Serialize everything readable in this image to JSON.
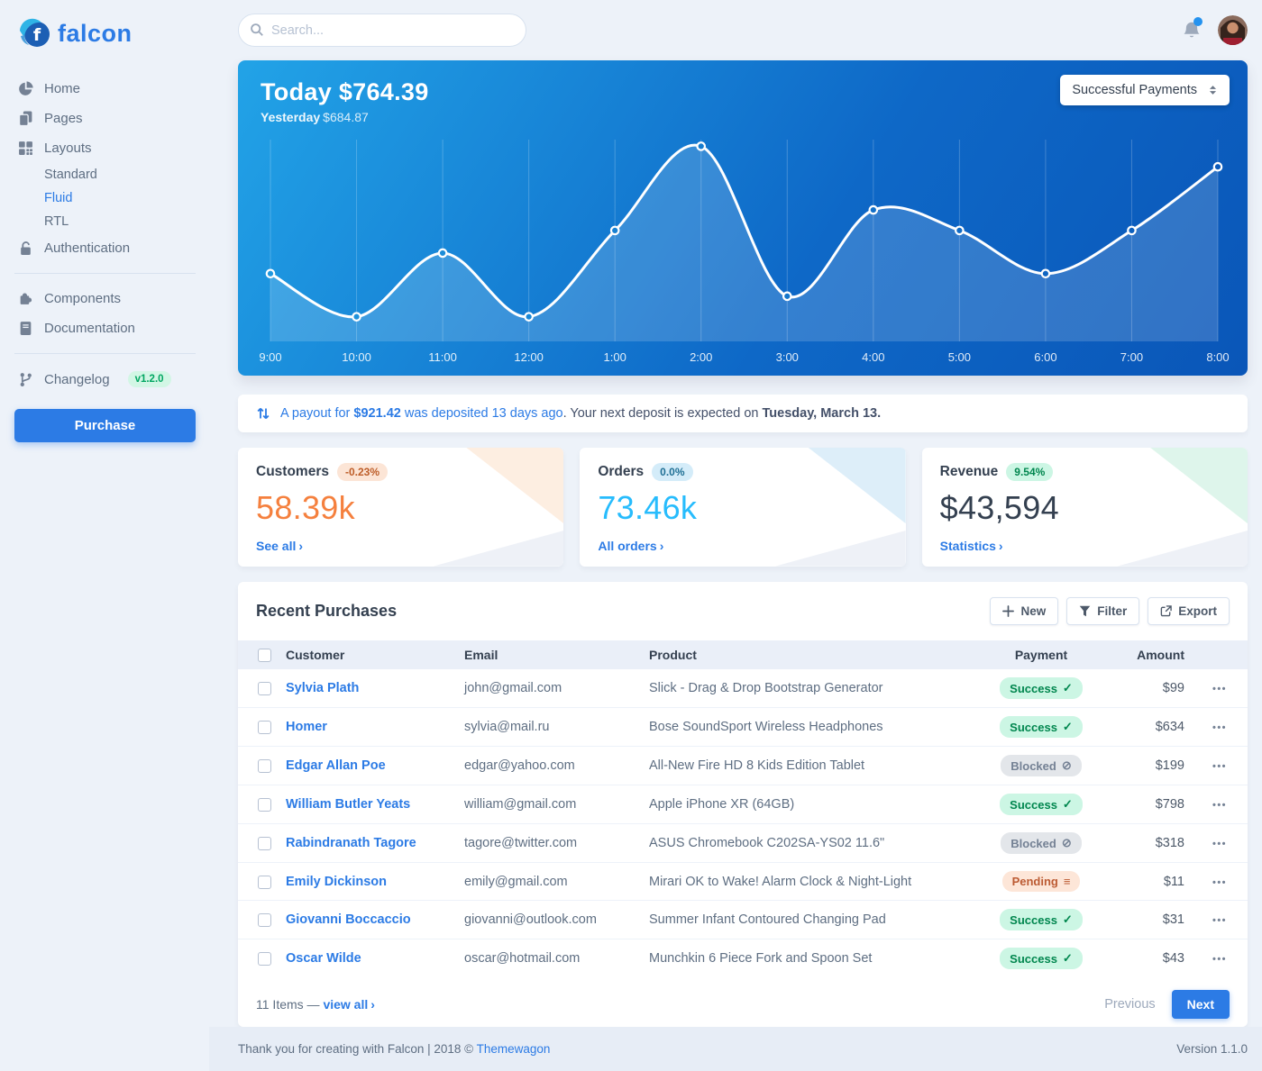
{
  "app": {
    "brand": "falcon",
    "footer_text": "Thank you for creating with Falcon | 2018 © ",
    "footer_link": "Themewagon",
    "version_label": "Version 1.1.0"
  },
  "colors": {
    "primary": "#2c7be5",
    "background": "#edf2f9",
    "chart_gradient": [
      "#22a3e7",
      "#0a56b8"
    ],
    "customers_value": "#f5803e",
    "orders_value": "#27bcfd",
    "revenue_value": "#344050",
    "success_badge": {
      "bg": "#ccf6e4",
      "text": "#00864e"
    },
    "blocked_badge": {
      "bg": "#e3e6ea",
      "text": "#748194"
    },
    "pending_badge": {
      "bg": "#fde6d8",
      "text": "#bc5b33"
    }
  },
  "topbar": {
    "search_placeholder": "Search...",
    "bell_icon": "bell-icon",
    "avatar": "user-avatar"
  },
  "sidebar": {
    "items": [
      {
        "label": "Home",
        "icon": "chart-pie-icon"
      },
      {
        "label": "Pages",
        "icon": "copy-icon"
      },
      {
        "label": "Layouts",
        "icon": "grid-icon",
        "children": [
          {
            "label": "Standard",
            "active": false
          },
          {
            "label": "Fluid",
            "active": true
          },
          {
            "label": "RTL",
            "active": false
          }
        ]
      },
      {
        "label": "Authentication",
        "icon": "lock-icon"
      },
      {
        "divider": true
      },
      {
        "label": "Components",
        "icon": "puzzle-icon"
      },
      {
        "label": "Documentation",
        "icon": "book-icon"
      },
      {
        "divider": true
      },
      {
        "label": "Changelog",
        "icon": "code-branch-icon",
        "badge": "v1.2.0"
      }
    ],
    "purchase_label": "Purchase"
  },
  "chart": {
    "today_label": "Today",
    "today_value": "$764.39",
    "yesterday_label": "Yesterday",
    "yesterday_value": "$684.87",
    "select_label": "Successful Payments"
  },
  "chart_data": {
    "type": "line",
    "title": "Today $764.39",
    "subtitle": "Yesterday $684.87",
    "series": [
      {
        "name": "Successful Payments",
        "values": [
          33,
          12,
          43,
          12,
          54,
          95,
          22,
          64,
          54,
          33,
          54,
          85
        ]
      }
    ],
    "x_labels": [
      "9:00",
      "10:00",
      "11:00",
      "12:00",
      "1:00",
      "2:00",
      "3:00",
      "4:00",
      "5:00",
      "6:00",
      "7:00",
      "8:00"
    ],
    "ylim": [
      0,
      100
    ],
    "y_axis_shown": false,
    "values_note": "relative heights estimated from pixels; no y-axis labels shown",
    "grid": "vertical",
    "line_color": "#ffffff",
    "area_fill": "rgba(255,255,255,0.16)",
    "markers": true
  },
  "payout": {
    "icon": "exchange-arrows-icon",
    "link_prefix": "A payout for ",
    "link_amount": "$921.42",
    "link_suffix": " was deposited 13 days ago",
    "rest_prefix": ". Your next deposit is expected on ",
    "rest_bold": "Tuesday, March 13."
  },
  "stats": [
    {
      "title": "Customers",
      "badge": "-0.23%",
      "badge_style": "warning",
      "value": "58.39k",
      "value_color": "#f5803e",
      "link": "See all",
      "accent": "#fdeee1"
    },
    {
      "title": "Orders",
      "badge": "0.0%",
      "badge_style": "info",
      "value": "73.46k",
      "value_color": "#27bcfd",
      "link": "All orders",
      "accent": "#ddeef9"
    },
    {
      "title": "Revenue",
      "badge": "9.54%",
      "badge_style": "success",
      "value": "$43,594",
      "value_color": "#344050",
      "link": "Statistics",
      "accent": "#def5eb"
    }
  ],
  "purchases": {
    "title": "Recent Purchases",
    "actions": [
      {
        "label": "New",
        "icon": "plus-icon"
      },
      {
        "label": "Filter",
        "icon": "filter-icon"
      },
      {
        "label": "Export",
        "icon": "export-icon"
      }
    ],
    "columns": [
      "Customer",
      "Email",
      "Product",
      "Payment",
      "Amount"
    ],
    "rows": [
      {
        "customer": "Sylvia Plath",
        "email": "john@gmail.com",
        "product": "Slick - Drag & Drop Bootstrap Generator",
        "payment": "Success",
        "payment_variant": "success",
        "amount": "$99"
      },
      {
        "customer": "Homer",
        "email": "sylvia@mail.ru",
        "product": "Bose SoundSport Wireless Headphones",
        "payment": "Success",
        "payment_variant": "success",
        "amount": "$634"
      },
      {
        "customer": "Edgar Allan Poe",
        "email": "edgar@yahoo.com",
        "product": "All-New Fire HD 8 Kids Edition Tablet",
        "payment": "Blocked",
        "payment_variant": "blocked",
        "amount": "$199"
      },
      {
        "customer": "William Butler Yeats",
        "email": "william@gmail.com",
        "product": "Apple iPhone XR (64GB)",
        "payment": "Success",
        "payment_variant": "success",
        "amount": "$798"
      },
      {
        "customer": "Rabindranath Tagore",
        "email": "tagore@twitter.com",
        "product": "ASUS Chromebook C202SA-YS02 11.6\"",
        "payment": "Blocked",
        "payment_variant": "blocked",
        "amount": "$318"
      },
      {
        "customer": "Emily Dickinson",
        "email": "emily@gmail.com",
        "product": "Mirari OK to Wake! Alarm Clock & Night-Light",
        "payment": "Pending",
        "payment_variant": "pending",
        "amount": "$11"
      },
      {
        "customer": "Giovanni Boccaccio",
        "email": "giovanni@outlook.com",
        "product": "Summer Infant Contoured Changing Pad",
        "payment": "Success",
        "payment_variant": "success",
        "amount": "$31"
      },
      {
        "customer": "Oscar Wilde",
        "email": "oscar@hotmail.com",
        "product": "Munchkin 6 Piece Fork and Spoon Set",
        "payment": "Success",
        "payment_variant": "success",
        "amount": "$43"
      }
    ],
    "footer": {
      "items_text": "11 Items — ",
      "view_all": "view all",
      "previous_label": "Previous",
      "next_label": "Next"
    }
  }
}
